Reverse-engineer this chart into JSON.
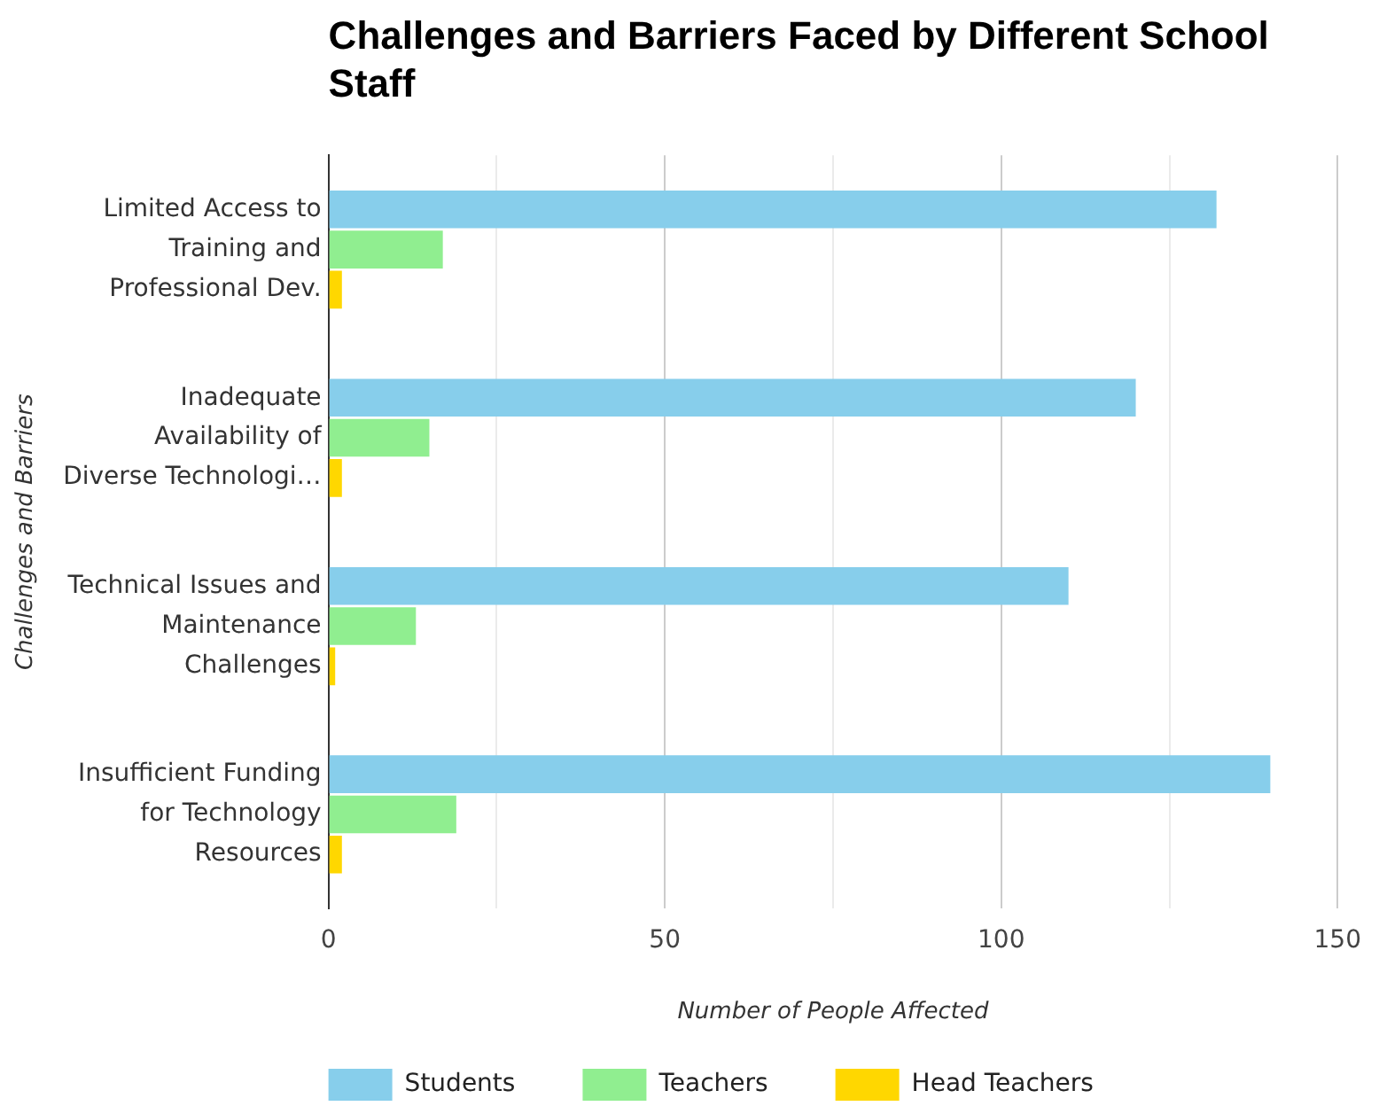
{
  "chart_data": {
    "type": "bar",
    "orientation": "horizontal",
    "title": "Challenges and Barriers Faced by Different School Staff",
    "xlabel": "Number of People Affected",
    "ylabel": "Challenges and Barriers",
    "categories": [
      "Limited Access to Training and Professional Dev.",
      "Inadequate Availability of Diverse Technologi…",
      "Technical Issues and Maintenance Challenges",
      "Insufficient Funding for Technology Resources"
    ],
    "series": [
      {
        "name": "Students",
        "color": "#87ceeb",
        "values": [
          132,
          120,
          110,
          140
        ]
      },
      {
        "name": "Teachers",
        "color": "#90ee90",
        "values": [
          17,
          15,
          13,
          19
        ]
      },
      {
        "name": "Head Teachers",
        "color": "#ffd700",
        "values": [
          2,
          2,
          1,
          2
        ]
      }
    ],
    "xlim": [
      0,
      150
    ],
    "xticks": [
      0,
      {
        "value": 25,
        "label": null
      },
      50,
      {
        "value": 75,
        "label": null
      },
      100,
      {
        "value": 125,
        "label": null
      },
      150
    ],
    "grid": "x",
    "legend": "bottom left"
  }
}
